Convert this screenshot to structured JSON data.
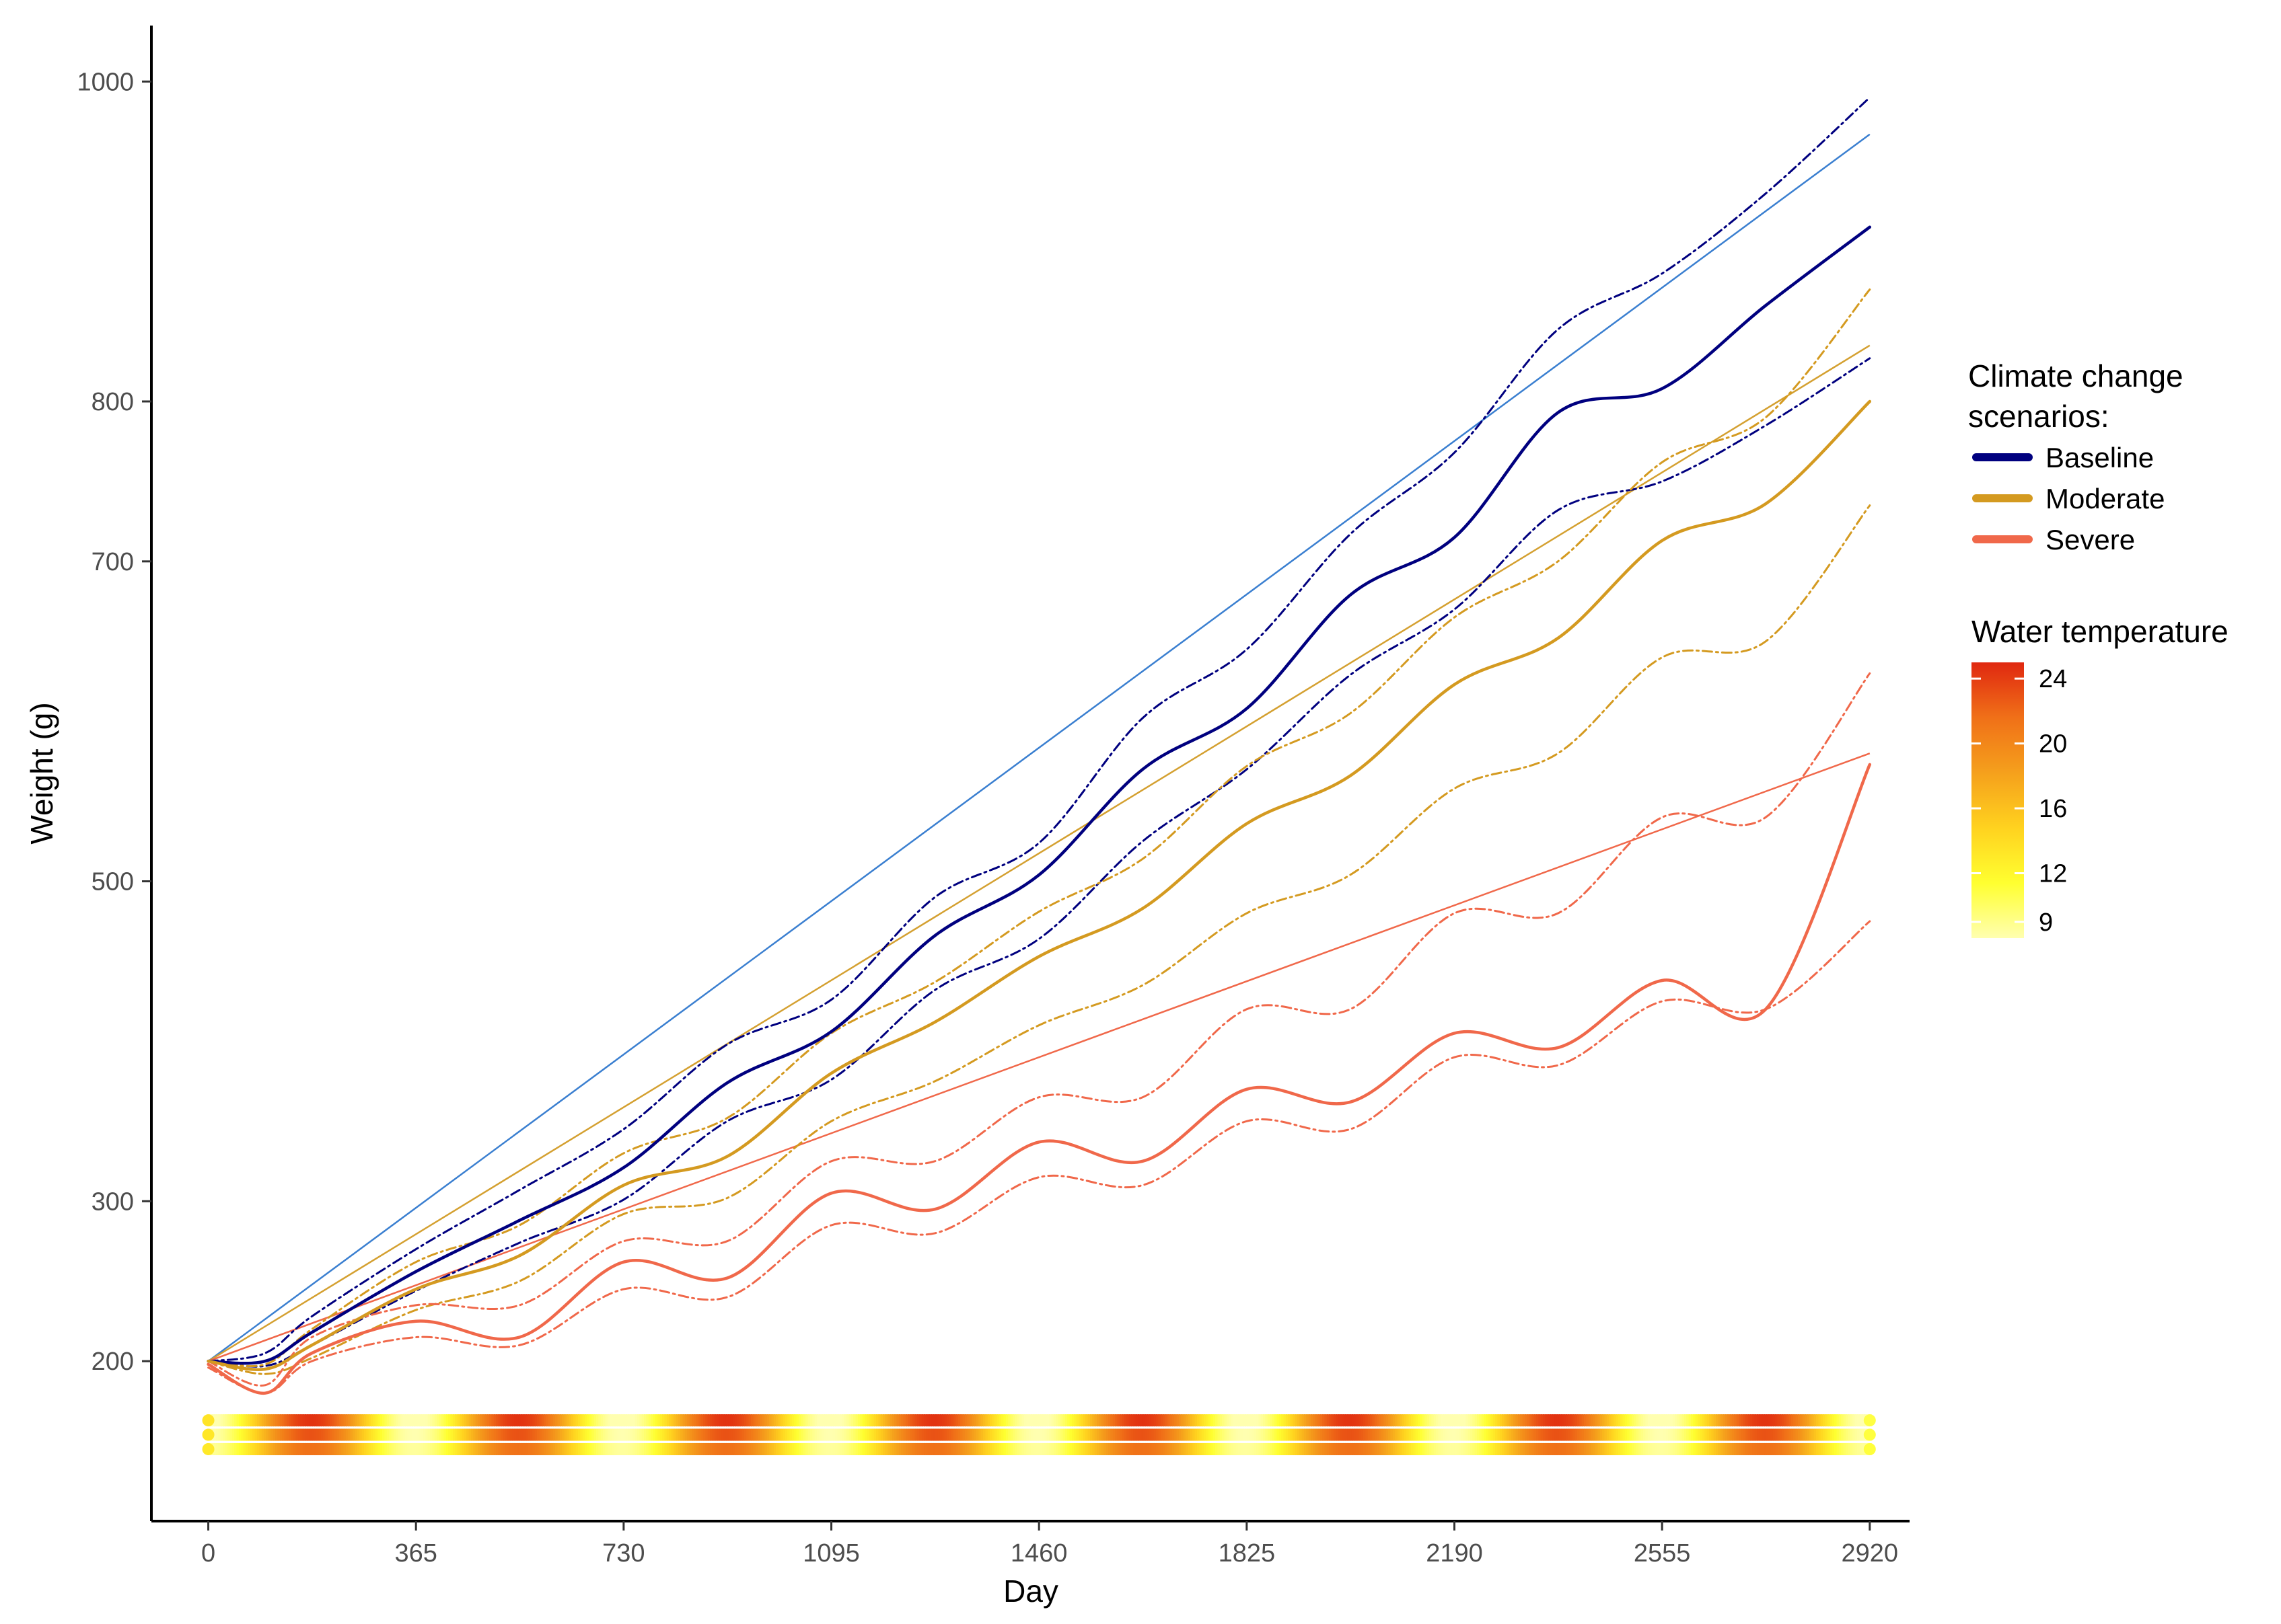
{
  "chart_data": {
    "type": "line",
    "xlabel": "Day",
    "ylabel": "Weight (g)",
    "xlim": [
      -100,
      2990
    ],
    "ylim": [
      100,
      1035
    ],
    "x_ticks": [
      0,
      365,
      730,
      1095,
      1460,
      1825,
      2190,
      2555,
      2920
    ],
    "y_ticks": [
      200,
      300,
      500,
      700,
      800,
      1000
    ],
    "grid": false,
    "legend": {
      "title_lines": [
        "Climate change",
        "scenarios:"
      ],
      "placement": "right",
      "entries": [
        {
          "label": "Baseline",
          "color": "#00007f"
        },
        {
          "label": "Moderate",
          "color": "#d49a20"
        },
        {
          "label": "Severe",
          "color": "#f0684a"
        }
      ]
    },
    "colorbar": {
      "title": "Water temperature",
      "min": 8,
      "max": 25,
      "ticks": [
        24,
        20,
        16,
        12,
        9
      ],
      "colors": [
        "#ffffb0",
        "#ffff30",
        "#ffd21f",
        "#f5a01c",
        "#f07018",
        "#e02810"
      ]
    },
    "trend_lines": [
      {
        "name": "Baseline trend",
        "color": "#3a7fd0",
        "x": [
          0,
          2920
        ],
        "y": [
          200,
          967
        ]
      },
      {
        "name": "Moderate trend",
        "color": "#d4a030",
        "x": [
          0,
          2920
        ],
        "y": [
          200,
          835
        ]
      },
      {
        "name": "Severe trend",
        "color": "#f0684a",
        "x": [
          0,
          2920
        ],
        "y": [
          200,
          580
        ]
      }
    ],
    "series": [
      {
        "name": "Baseline",
        "role": "mean",
        "color": "#00007f",
        "dash": "solid",
        "x": [
          0,
          100,
          182,
          365,
          547,
          730,
          912,
          1095,
          1277,
          1460,
          1642,
          1825,
          2007,
          2190,
          2372,
          2555,
          2737,
          2920
        ],
        "y": [
          200,
          200,
          218,
          256,
          288,
          321,
          374,
          406,
          466,
          504,
          570,
          608,
          679,
          715,
          793,
          808,
          860,
          909
        ]
      },
      {
        "name": "Baseline upper",
        "role": "upper",
        "color": "#00007f",
        "dash": "dotdash",
        "x": [
          0,
          100,
          182,
          365,
          547,
          730,
          912,
          1095,
          1277,
          1460,
          1642,
          1825,
          2007,
          2190,
          2372,
          2555,
          2737,
          2920
        ],
        "y": [
          200,
          205,
          228,
          270,
          307,
          345,
          398,
          426,
          490,
          524,
          602,
          645,
          717,
          768,
          845,
          880,
          930,
          990
        ]
      },
      {
        "name": "Baseline lower",
        "role": "lower",
        "color": "#00007f",
        "dash": "dotdash",
        "x": [
          0,
          100,
          182,
          365,
          547,
          730,
          912,
          1095,
          1277,
          1460,
          1642,
          1825,
          2007,
          2190,
          2372,
          2555,
          2737,
          2920
        ],
        "y": [
          200,
          197,
          210,
          244,
          274,
          301,
          350,
          376,
          432,
          464,
          525,
          570,
          629,
          670,
          732,
          750,
          785,
          827
        ]
      },
      {
        "name": "Moderate",
        "role": "mean",
        "color": "#d49a20",
        "dash": "solid",
        "x": [
          0,
          100,
          182,
          365,
          547,
          730,
          912,
          1095,
          1277,
          1460,
          1642,
          1825,
          2007,
          2190,
          2372,
          2555,
          2737,
          2920
        ],
        "y": [
          200,
          195,
          210,
          245,
          266,
          310,
          328,
          380,
          412,
          453,
          483,
          536,
          566,
          623,
          652,
          713,
          736,
          800
        ]
      },
      {
        "name": "Moderate upper",
        "role": "upper",
        "color": "#d49a20",
        "dash": "dotdash",
        "x": [
          0,
          100,
          182,
          365,
          547,
          730,
          912,
          1095,
          1277,
          1460,
          1642,
          1825,
          2007,
          2190,
          2372,
          2555,
          2737,
          2920
        ],
        "y": [
          200,
          198,
          220,
          262,
          285,
          330,
          352,
          405,
          437,
          481,
          514,
          572,
          605,
          665,
          700,
          762,
          790,
          870
        ]
      },
      {
        "name": "Moderate lower",
        "role": "lower",
        "color": "#d49a20",
        "dash": "dotdash",
        "x": [
          0,
          100,
          182,
          365,
          547,
          730,
          912,
          1095,
          1277,
          1460,
          1642,
          1825,
          2007,
          2190,
          2372,
          2555,
          2737,
          2920
        ],
        "y": [
          200,
          192,
          202,
          232,
          250,
          292,
          302,
          350,
          375,
          410,
          435,
          480,
          504,
          558,
          580,
          640,
          650,
          735
        ]
      },
      {
        "name": "Severe",
        "role": "mean",
        "color": "#f0684a",
        "dash": "solid",
        "x": [
          0,
          100,
          182,
          365,
          547,
          730,
          912,
          1095,
          1277,
          1460,
          1642,
          1825,
          2007,
          2190,
          2372,
          2555,
          2737,
          2920
        ],
        "y": [
          198,
          180,
          205,
          225,
          215,
          262,
          252,
          305,
          295,
          337,
          325,
          370,
          362,
          405,
          396,
          438,
          420,
          573
        ]
      },
      {
        "name": "Severe upper",
        "role": "upper",
        "color": "#f0684a",
        "dash": "dotdash",
        "x": [
          0,
          100,
          182,
          365,
          547,
          730,
          912,
          1095,
          1277,
          1460,
          1642,
          1825,
          2007,
          2190,
          2372,
          2555,
          2737,
          2920
        ],
        "y": [
          200,
          185,
          215,
          235,
          235,
          275,
          275,
          325,
          325,
          365,
          365,
          420,
          420,
          480,
          480,
          540,
          540,
          630
        ]
      },
      {
        "name": "Severe lower",
        "role": "lower",
        "color": "#f0684a",
        "dash": "dotdash",
        "x": [
          0,
          100,
          182,
          365,
          547,
          730,
          912,
          1095,
          1277,
          1460,
          1642,
          1825,
          2007,
          2190,
          2372,
          2555,
          2737,
          2920
        ],
        "y": [
          196,
          180,
          200,
          215,
          210,
          245,
          240,
          285,
          280,
          315,
          310,
          350,
          345,
          390,
          385,
          425,
          420,
          475
        ]
      }
    ],
    "temperature_strips": [
      {
        "scenario": "Severe",
        "y": 163,
        "mean": 16,
        "amplitude": 8.5
      },
      {
        "scenario": "Moderate",
        "y": 154,
        "mean": 15.5,
        "amplitude": 7.5
      },
      {
        "scenario": "Baseline",
        "y": 145,
        "mean": 15,
        "amplitude": 6.5
      }
    ]
  }
}
